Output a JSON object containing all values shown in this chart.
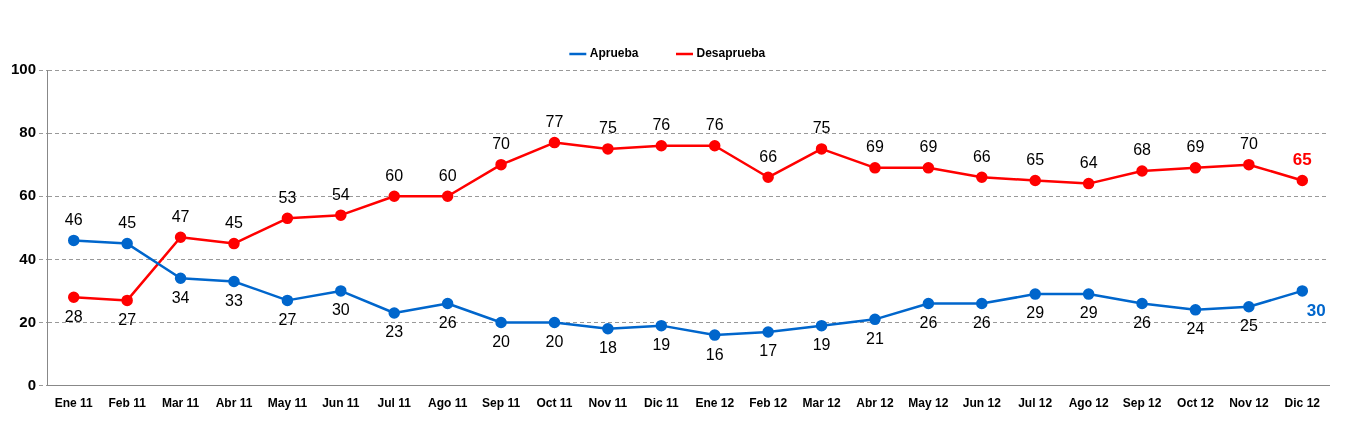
{
  "chart_data": {
    "type": "line",
    "categories": [
      "Ene 11",
      "Feb 11",
      "Mar 11",
      "Abr 11",
      "May 11",
      "Jun 11",
      "Jul 11",
      "Ago 11",
      "Sep 11",
      "Oct 11",
      "Nov 11",
      "Dic 11",
      "Ene 12",
      "Feb 12",
      "Mar 12",
      "Abr 12",
      "May 12",
      "Jun 12",
      "Jul 12",
      "Ago 12",
      "Sep 12",
      "Oct 12",
      "Nov 12",
      "Dic 12"
    ],
    "series": [
      {
        "name": "Aprueba",
        "color": "#0066cc",
        "values": [
          46,
          45,
          34,
          33,
          27,
          30,
          23,
          26,
          20,
          20,
          18,
          19,
          16,
          17,
          19,
          21,
          26,
          26,
          29,
          29,
          26,
          24,
          25,
          30
        ]
      },
      {
        "name": "Desaprueba",
        "color": "#ff0000",
        "values": [
          28,
          27,
          47,
          45,
          53,
          54,
          60,
          60,
          70,
          77,
          75,
          76,
          76,
          66,
          75,
          69,
          69,
          66,
          65,
          64,
          68,
          69,
          70,
          65
        ]
      }
    ],
    "ylim": [
      0,
      100
    ],
    "yticks": [
      0,
      20,
      40,
      60,
      80,
      100
    ],
    "grid": "y",
    "legend": "top",
    "marker": "circle",
    "line_style": "solid",
    "data_labels": true
  }
}
